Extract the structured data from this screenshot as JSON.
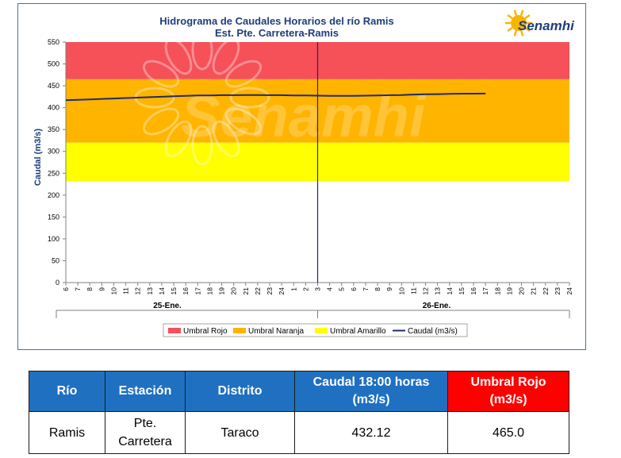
{
  "chart": {
    "title_line1": "Hidrograma de Caudales Horarios del río Ramis",
    "title_line2": "Est. Pte. Carretera-Ramis",
    "logo_text": "Senamhi",
    "watermark_text": "Senamhi",
    "day_labels": [
      "25-Ene.",
      "26-Ene."
    ],
    "legend": [
      "Umbral Rojo",
      "Umbral Naranja",
      "Umbral Amarillo",
      "Caudal (m3/s)"
    ],
    "colors": {
      "umbral_rojo": "#f65058",
      "umbral_naranja": "#ffb400",
      "umbral_amarillo": "#ffff00",
      "caudal": "#1f2a6b",
      "table_header": "#1f70c1",
      "table_header_red": "#ff0000"
    }
  },
  "chart_data": {
    "type": "line",
    "ylabel": "Caudal  (m3/s)",
    "xlabel": "",
    "ylim": [
      0,
      550
    ],
    "y_ticks": [
      0,
      50,
      100,
      150,
      200,
      250,
      300,
      350,
      400,
      450,
      500,
      550
    ],
    "x_tick_labels": [
      "6",
      "7",
      "8",
      "9",
      "10",
      "11",
      "12",
      "13",
      "14",
      "15",
      "16",
      "17",
      "18",
      "19",
      "20",
      "21",
      "22",
      "23",
      "24",
      "1",
      "2",
      "3",
      "4",
      "5",
      "6",
      "7",
      "8",
      "9",
      "10",
      "11",
      "12",
      "13",
      "14",
      "15",
      "16",
      "17",
      "18",
      "19",
      "20",
      "21",
      "22",
      "23",
      "24"
    ],
    "day_boundary_tick": "3",
    "thresholds": [
      {
        "name": "Umbral Rojo",
        "from": 465,
        "to": 550
      },
      {
        "name": "Umbral Naranja",
        "from": 320,
        "to": 465
      },
      {
        "name": "Umbral Amarillo",
        "from": 232,
        "to": 320
      }
    ],
    "series": [
      {
        "name": "Caudal (m3/s)",
        "values": [
          417,
          418,
          419,
          420,
          421,
          422,
          423,
          424,
          425,
          426,
          427,
          428,
          428,
          428.5,
          428.5,
          429,
          429,
          428.5,
          428.5,
          428,
          428,
          427.5,
          427,
          427,
          427,
          427.5,
          428,
          428.5,
          429,
          430,
          430.5,
          431,
          431.5,
          432,
          432,
          432.12
        ]
      }
    ],
    "grid": false,
    "legend_position": "bottom"
  },
  "table": {
    "headers": [
      "Río",
      "Estación",
      "Distrito",
      "Caudal 18:00 horas (m3/s)",
      "Umbral Rojo (m3/s)"
    ],
    "row": [
      "Ramis",
      "Pte. Carretera",
      "Taraco",
      "432.12",
      "465.0"
    ]
  }
}
